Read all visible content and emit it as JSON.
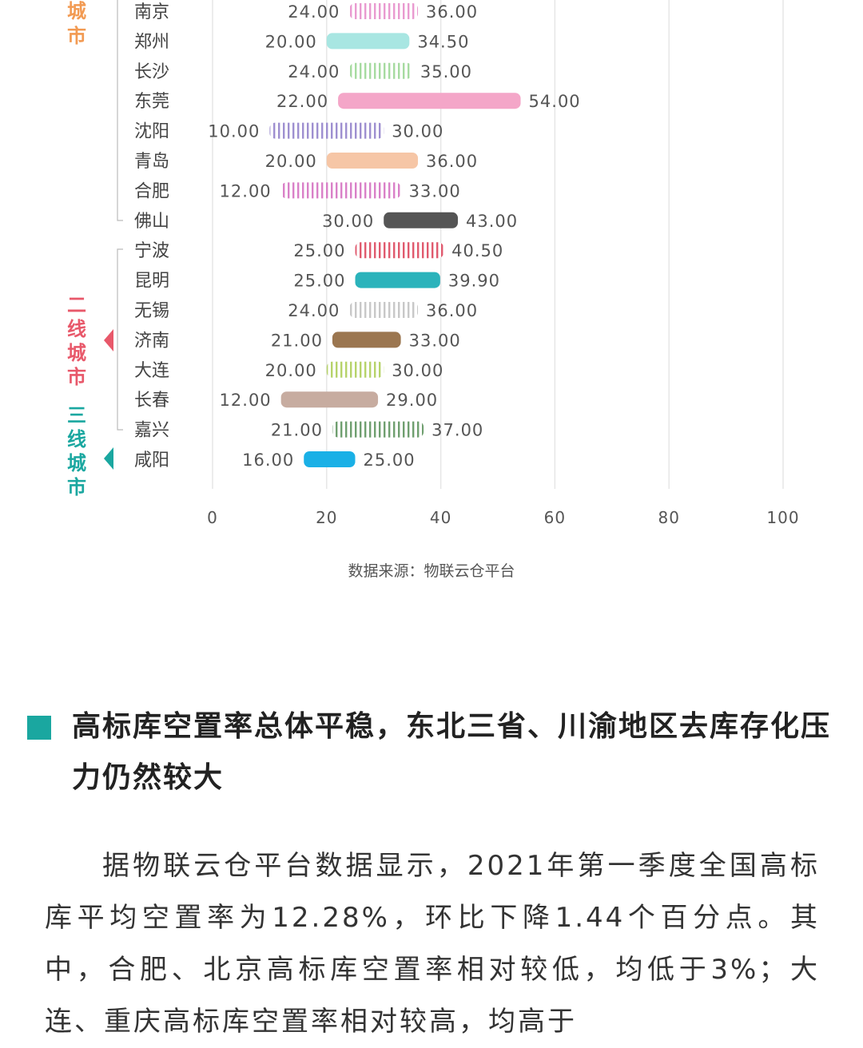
{
  "chart_data": {
    "type": "bar",
    "orientation": "horizontal-range",
    "groups": [
      {
        "label": "城市",
        "color": "#f29a52"
      },
      {
        "label": "二线城市",
        "color": "#e8586a"
      },
      {
        "label": "三线城市",
        "color": "#1aa7a0"
      }
    ],
    "categories": [
      "南京",
      "郑州",
      "长沙",
      "东莞",
      "沈阳",
      "青岛",
      "合肥",
      "佛山",
      "宁波",
      "昆明",
      "无锡",
      "济南",
      "大连",
      "长春",
      "嘉兴",
      "咸阳"
    ],
    "series": [
      {
        "values_low": [
          24.0,
          20.0,
          24.0,
          22.0,
          10.0,
          20.0,
          12.0,
          30.0,
          25.0,
          25.0,
          24.0,
          21.0,
          20.0,
          12.0,
          21.0,
          16.0
        ],
        "values_high": [
          36.0,
          34.5,
          35.0,
          54.0,
          30.0,
          36.0,
          33.0,
          43.0,
          40.5,
          39.9,
          36.0,
          33.0,
          30.0,
          29.0,
          37.0,
          25.0
        ]
      }
    ],
    "low_labels": [
      "24.00",
      "20.00",
      "24.00",
      "22.00",
      "10.00",
      "20.00",
      "12.00",
      "30.00",
      "25.00",
      "25.00",
      "24.00",
      "21.00",
      "20.00",
      "12.00",
      "21.00",
      "16.00"
    ],
    "high_labels": [
      "36.00",
      "34.50",
      "35.00",
      "54.00",
      "30.00",
      "36.00",
      "33.00",
      "43.00",
      "40.50",
      "39.90",
      "36.00",
      "33.00",
      "30.00",
      "29.00",
      "37.00",
      "25.00"
    ],
    "bar_colors": [
      "#e99ad0",
      "#a8e6e2",
      "#a6dba0",
      "#f4a6c8",
      "#9e8fd0",
      "#f6c6a6",
      "#d980c8",
      "#555555",
      "#e05a6e",
      "#2bb3bb",
      "#c8c8c8",
      "#9b7650",
      "#b6d36a",
      "#c7aca0",
      "#6f9f6f",
      "#1ab0e6"
    ],
    "bar_patterns": [
      "stripe",
      "solid",
      "stripe",
      "solid",
      "stripe",
      "solid",
      "stripe",
      "solid",
      "stripe",
      "solid",
      "stripe",
      "solid",
      "stripe",
      "solid",
      "stripe",
      "solid"
    ],
    "xticks": [
      "0",
      "20",
      "40",
      "60",
      "80",
      "100"
    ],
    "xlim": [
      0,
      100
    ],
    "grid": "vertical",
    "source_text": "数据来源：物联云仓平台"
  },
  "article": {
    "heading": "高标库空置率总体平稳，东北三省、川渝地区去库存化压力仍然较大",
    "paragraph": "据物联云仓平台数据显示，2021年第一季度全国高标库平均空置率为12.28%，环比下降1.44个百分点。其中，合肥、北京高标库空置率相对较低，均低于3%；大连、重庆高标库空置率相对较高，均高于"
  }
}
